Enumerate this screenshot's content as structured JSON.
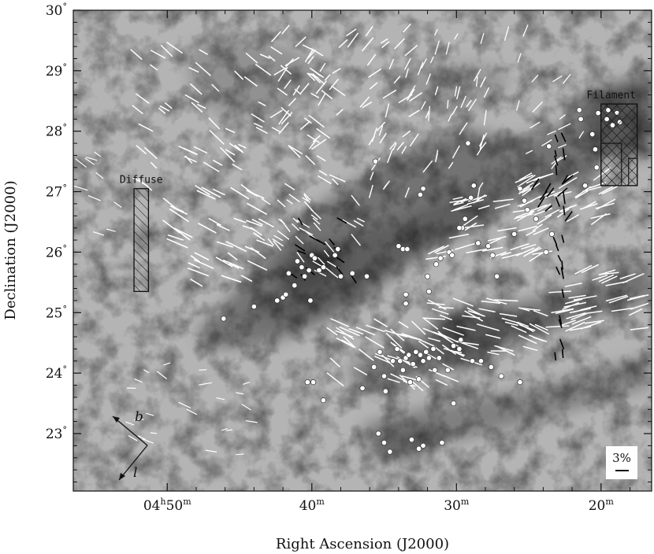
{
  "chart_data": {
    "type": "scatter",
    "title": "",
    "xlabel": "Right Ascension (J2000)",
    "ylabel": "Declination (J2000)",
    "xlim_minutes_RA_4h": [
      56.5,
      16.5
    ],
    "ylim_deg": [
      22.05,
      30.0
    ],
    "x_ticks": [
      {
        "ra_min": 50,
        "label_h": "04",
        "label_m": "50"
      },
      {
        "ra_min": 40,
        "label_h": "",
        "label_m": "40"
      },
      {
        "ra_min": 30,
        "label_h": "",
        "label_m": "30"
      },
      {
        "ra_min": 20,
        "label_h": "",
        "label_m": "20"
      }
    ],
    "y_ticks": [
      {
        "dec": 23,
        "label": "23"
      },
      {
        "dec": 24,
        "label": "24"
      },
      {
        "dec": 25,
        "label": "25"
      },
      {
        "dec": 26,
        "label": "26"
      },
      {
        "dec": 27,
        "label": "27"
      },
      {
        "dec": 28,
        "label": "28"
      },
      {
        "dec": 29,
        "label": "29"
      },
      {
        "dec": 30,
        "label": "30"
      }
    ],
    "degree_symbol": "°",
    "hour_symbol": "h",
    "minute_symbol": "m",
    "regions": [
      {
        "name": "Diffuse",
        "ra_min": [
          52.3,
          51.3
        ],
        "dec": [
          25.35,
          27.05
        ],
        "pattern": "diagonal-hatch"
      },
      {
        "name": "Filament",
        "ra_min": [
          20.0,
          17.5
        ],
        "dec": [
          27.1,
          28.45
        ],
        "pattern": "cross-hatch"
      }
    ],
    "stars_ra_min_dec": [
      [
        46.1,
        24.9
      ],
      [
        44.0,
        25.1
      ],
      [
        42.4,
        25.2
      ],
      [
        42.0,
        25.25
      ],
      [
        41.8,
        25.3
      ],
      [
        41.2,
        25.45
      ],
      [
        41.6,
        25.65
      ],
      [
        41.0,
        25.85
      ],
      [
        40.7,
        25.75
      ],
      [
        40.5,
        25.6
      ],
      [
        40.2,
        25.7
      ],
      [
        40.0,
        25.95
      ],
      [
        39.8,
        25.9
      ],
      [
        39.5,
        25.7
      ],
      [
        39.2,
        25.75
      ],
      [
        40.1,
        25.2
      ],
      [
        38.4,
        25.95
      ],
      [
        38.2,
        26.05
      ],
      [
        38.0,
        25.6
      ],
      [
        37.2,
        25.65
      ],
      [
        36.2,
        25.6
      ],
      [
        35.6,
        27.5
      ],
      [
        34.0,
        26.1
      ],
      [
        33.7,
        26.05
      ],
      [
        33.4,
        26.05
      ],
      [
        33.5,
        25.3
      ],
      [
        33.5,
        25.15
      ],
      [
        32.5,
        26.95
      ],
      [
        32.3,
        27.05
      ],
      [
        32.0,
        25.6
      ],
      [
        31.9,
        25.35
      ],
      [
        31.4,
        25.8
      ],
      [
        31.1,
        25.9
      ],
      [
        30.5,
        26.0
      ],
      [
        30.3,
        25.95
      ],
      [
        29.6,
        26.4
      ],
      [
        29.8,
        26.4
      ],
      [
        29.4,
        26.55
      ],
      [
        29.0,
        26.9
      ],
      [
        28.8,
        27.1
      ],
      [
        29.2,
        27.8
      ],
      [
        28.5,
        26.15
      ],
      [
        27.8,
        26.1
      ],
      [
        27.5,
        25.95
      ],
      [
        27.2,
        25.6
      ],
      [
        26.0,
        26.3
      ],
      [
        25.6,
        27.05
      ],
      [
        25.3,
        26.85
      ],
      [
        25.1,
        26.7
      ],
      [
        24.5,
        26.55
      ],
      [
        23.8,
        26.0
      ],
      [
        23.6,
        27.75
      ],
      [
        23.4,
        26.3
      ],
      [
        21.5,
        28.35
      ],
      [
        21.4,
        28.2
      ],
      [
        20.6,
        27.95
      ],
      [
        20.4,
        27.7
      ],
      [
        20.2,
        28.3
      ],
      [
        19.6,
        28.2
      ],
      [
        19.5,
        28.35
      ],
      [
        19.2,
        28.1
      ],
      [
        18.9,
        28.3
      ],
      [
        18.7,
        28.15
      ],
      [
        21.1,
        27.1
      ],
      [
        20.3,
        27.4
      ],
      [
        35.3,
        24.35
      ],
      [
        35.7,
        24.1
      ],
      [
        35.0,
        23.95
      ],
      [
        34.4,
        24.2
      ],
      [
        34.1,
        24.4
      ],
      [
        33.9,
        24.2
      ],
      [
        33.7,
        24.05
      ],
      [
        33.5,
        24.25
      ],
      [
        33.3,
        24.3
      ],
      [
        33.0,
        24.15
      ],
      [
        32.8,
        24.35
      ],
      [
        32.6,
        23.9
      ],
      [
        32.5,
        24.3
      ],
      [
        32.3,
        24.2
      ],
      [
        32.1,
        24.35
      ],
      [
        31.9,
        24.25
      ],
      [
        31.6,
        24.4
      ],
      [
        31.2,
        24.25
      ],
      [
        30.6,
        24.05
      ],
      [
        30.2,
        24.45
      ],
      [
        29.8,
        24.4
      ],
      [
        29.7,
        24.55
      ],
      [
        28.9,
        24.2
      ],
      [
        28.3,
        24.2
      ],
      [
        27.6,
        24.1
      ],
      [
        26.9,
        23.95
      ],
      [
        25.6,
        23.85
      ],
      [
        31.5,
        24.05
      ],
      [
        33.2,
        23.85
      ],
      [
        34.9,
        23.7
      ],
      [
        35.4,
        23.0
      ],
      [
        35.0,
        22.85
      ],
      [
        34.6,
        22.7
      ],
      [
        33.1,
        22.9
      ],
      [
        32.6,
        22.75
      ],
      [
        32.3,
        22.8
      ],
      [
        31.0,
        22.85
      ],
      [
        30.2,
        23.5
      ],
      [
        39.2,
        23.55
      ],
      [
        39.9,
        23.85
      ],
      [
        40.3,
        23.85
      ],
      [
        36.5,
        23.75
      ]
    ],
    "scale_bar_label": "3%",
    "compass_labels": {
      "b": "b",
      "l": "l"
    }
  },
  "colors": {
    "background": "#a9a9a9",
    "cloud_dark": "#4a4a4a",
    "vectors_optical": "#ffffff",
    "vectors_ir": "#000000",
    "stars": "#ffffff",
    "scale_box": "#ffffff"
  }
}
